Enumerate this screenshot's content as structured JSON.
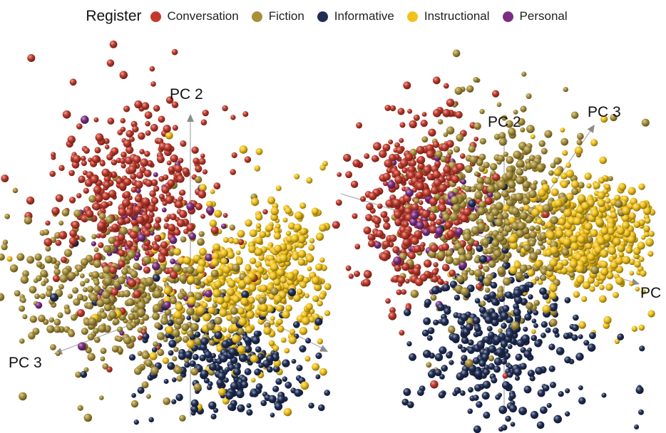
{
  "legend": {
    "title": "Register",
    "items": [
      {
        "label": "Conversation",
        "color": "#c0392b"
      },
      {
        "label": "Fiction",
        "color": "#a89038"
      },
      {
        "label": "Informative",
        "color": "#1f2d55"
      },
      {
        "label": "Instructional",
        "color": "#f1c21b"
      },
      {
        "label": "Personal",
        "color": "#7b2d83"
      }
    ]
  },
  "chart_data": [
    {
      "type": "scatter",
      "dimensions": 3,
      "view": "left",
      "axis_labels": [
        "PC 2",
        "PC 3"
      ],
      "grid": false,
      "legend_position": "top",
      "series": [
        {
          "name": "Conversation",
          "color": "#c0392b",
          "count": 450
        },
        {
          "name": "Fiction",
          "color": "#a89038",
          "count": 500
        },
        {
          "name": "Informative",
          "color": "#1f2d55",
          "count": 260
        },
        {
          "name": "Instructional",
          "color": "#f1c21b",
          "count": 560
        },
        {
          "name": "Personal",
          "color": "#7b2d83",
          "count": 60
        }
      ]
    },
    {
      "type": "scatter",
      "dimensions": 3,
      "view": "right",
      "axis_labels": [
        "PC 2",
        "PC 3",
        "PC"
      ],
      "grid": false,
      "legend_position": "top",
      "series": [
        {
          "name": "Conversation",
          "color": "#c0392b",
          "count": 440
        },
        {
          "name": "Fiction",
          "color": "#a89038",
          "count": 520
        },
        {
          "name": "Informative",
          "color": "#1f2d55",
          "count": 380
        },
        {
          "name": "Instructional",
          "color": "#f1c21b",
          "count": 540
        },
        {
          "name": "Personal",
          "color": "#7b2d83",
          "count": 60
        }
      ]
    }
  ]
}
